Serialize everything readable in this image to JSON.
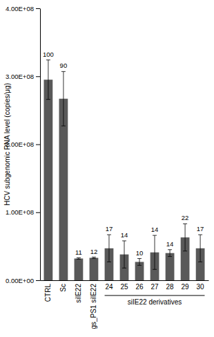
{
  "chart_data": {
    "type": "bar",
    "y_label": "HCV subgenomic RNA level (copies/μg)",
    "categories": [
      "CTRL",
      "Sc",
      "siIE22",
      "gs_PS1 siIE22",
      "24",
      "25",
      "26",
      "27",
      "28",
      "29",
      "30"
    ],
    "values": [
      295000000,
      267000000,
      32000000,
      33000000,
      47000000,
      38000000,
      27000000,
      41000000,
      40000000,
      63000000,
      47000000
    ],
    "errors": [
      29000000,
      40000000,
      1000000,
      1000000,
      20000000,
      20000000,
      5000000,
      25000000,
      5000000,
      20000000,
      20000000
    ],
    "annotations": [
      100,
      90,
      11,
      12,
      17,
      14,
      10,
      14,
      14,
      22,
      17
    ],
    "groups": [
      {
        "label": "siIE22 derivatives",
        "categories": [
          "24",
          "25",
          "26",
          "27",
          "28",
          "29",
          "30"
        ]
      }
    ],
    "color": "#595959",
    "ylim": [
      0,
      400000000
    ],
    "yticks": [
      {
        "value": 0,
        "label": "0.00E+00"
      },
      {
        "value": 100000000,
        "label": "1.00E+08"
      },
      {
        "value": 200000000,
        "label": "2.00E+08"
      },
      {
        "value": 300000000,
        "label": "3.00E+08"
      },
      {
        "value": 400000000,
        "label": "4.00E+08"
      }
    ],
    "grid": false
  }
}
